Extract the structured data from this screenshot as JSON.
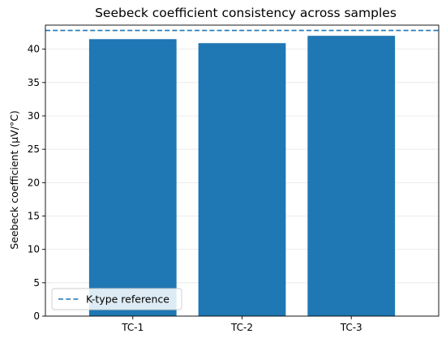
{
  "chart_data": {
    "type": "bar",
    "title": "Seebeck coefficient consistency across samples",
    "xlabel": "",
    "ylabel": "Seebeck coefficient (μV/°C)",
    "categories": [
      "TC-1",
      "TC-2",
      "TC-3"
    ],
    "values": [
      41.5,
      40.9,
      42.0
    ],
    "ylim": [
      0,
      43.6
    ],
    "yticks": [
      0,
      5,
      10,
      15,
      20,
      25,
      30,
      35,
      40
    ],
    "grid": "y",
    "bar_color": "#1f77b4",
    "reference_line": {
      "label": "K-type reference",
      "value": 42.8,
      "style": "dashed",
      "color": "#1f77b4"
    },
    "legend": {
      "placement": "lower-left"
    }
  }
}
